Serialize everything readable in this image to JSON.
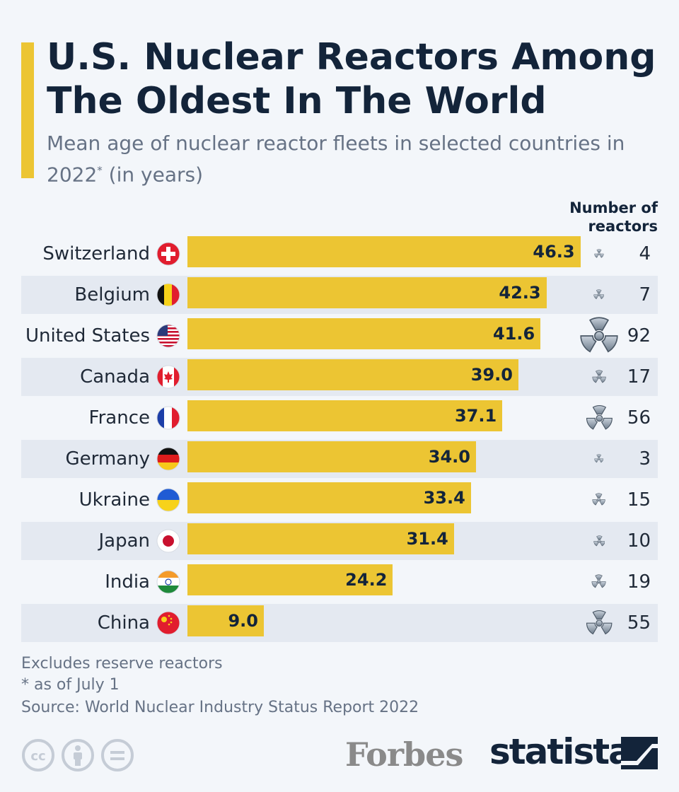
{
  "title": "U.S. Nuclear Reactors Among The Oldest In The World",
  "subtitle": "Mean age of nuclear reactor fleets in selected countries in 2022",
  "subtitle_mark": "*",
  "subtitle_unit": " (in years)",
  "column_header_line1": "Number of",
  "column_header_line2": "reactors",
  "accent_color": "#ecc533",
  "chart_data": {
    "type": "bar",
    "orientation": "horizontal",
    "categories": [
      "Switzerland",
      "Belgium",
      "United States",
      "Canada",
      "France",
      "Germany",
      "Ukraine",
      "Japan",
      "India",
      "China"
    ],
    "values": [
      46.3,
      42.3,
      41.6,
      39.0,
      37.1,
      34.0,
      33.4,
      31.4,
      24.2,
      9.0
    ],
    "value_labels": [
      "46.3",
      "42.3",
      "41.6",
      "39.0",
      "37.1",
      "34.0",
      "33.4",
      "31.4",
      "24.2",
      "9.0"
    ],
    "reactor_counts": [
      "4",
      "7",
      "92",
      "17",
      "56",
      "3",
      "15",
      "10",
      "19",
      "55"
    ],
    "flags": [
      "flag-switzerland",
      "flag-belgium",
      "flag-united-states",
      "flag-canada",
      "flag-france",
      "flag-germany",
      "flag-ukraine",
      "flag-japan",
      "flag-india",
      "flag-china"
    ],
    "xlim": [
      0,
      50
    ]
  },
  "footnotes": {
    "note1": "Excludes reserve reactors",
    "note2": "* as of July 1",
    "source": "Source: World Nuclear Industry Status Report 2022"
  },
  "brands": {
    "forbes": "Forbes",
    "statista": "statista"
  },
  "icons": [
    "cc-icon",
    "attribution-icon",
    "no-derivatives-icon",
    "radiation-icon",
    "statista-logo-icon"
  ]
}
